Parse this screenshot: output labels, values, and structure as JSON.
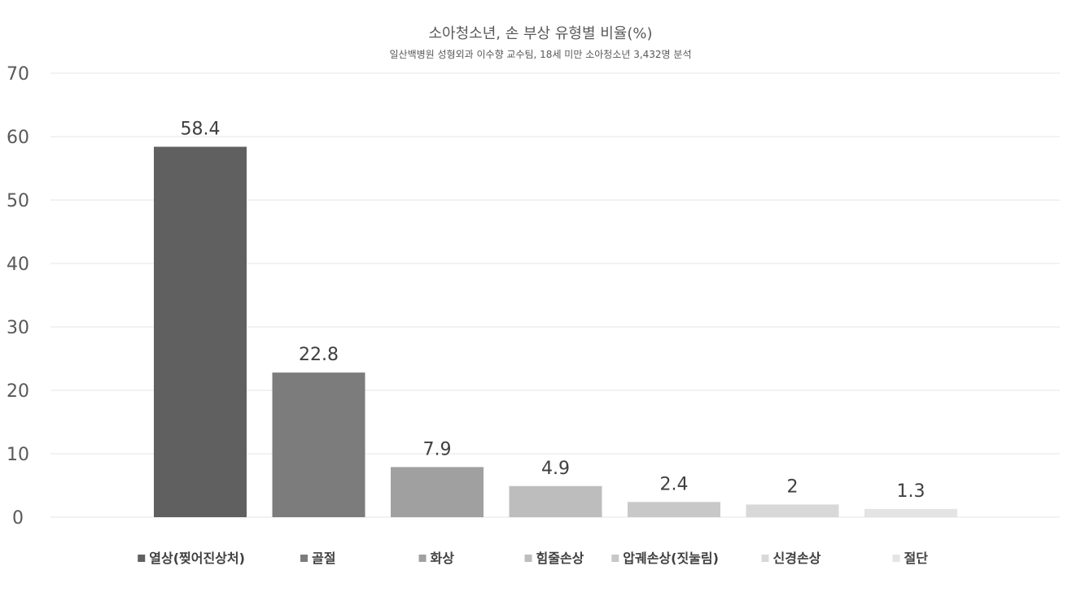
{
  "chart_data": {
    "type": "bar",
    "title": "소아청소년, 손 부상 유형별 비율(%)",
    "subtitle": "일산백병원 성형외과 이수향 교수팀, 18세 미만 소아청소년 3,432명 분석",
    "categories": [
      "열상(찢어진상처)",
      "골절",
      "화상",
      "힘줄손상",
      "압궤손상(짓눌림)",
      "신경손상",
      "절단"
    ],
    "values": [
      58.4,
      22.8,
      7.9,
      4.9,
      2.4,
      2,
      1.3
    ],
    "data_labels": [
      "58.4",
      "22.8",
      "7.9",
      "4.9",
      "2.4",
      "2",
      "1.3"
    ],
    "colors": [
      "#606060",
      "#7c7c7c",
      "#a0a0a0",
      "#bdbdbd",
      "#c8c8c8",
      "#d8d8d8",
      "#e4e4e4"
    ],
    "ylim": [
      0,
      70
    ],
    "yticks": [
      "0",
      "10",
      "20",
      "30",
      "40",
      "50",
      "60",
      "70"
    ],
    "grid": true,
    "legend_position": "bottom",
    "xlabel": "",
    "ylabel": ""
  }
}
